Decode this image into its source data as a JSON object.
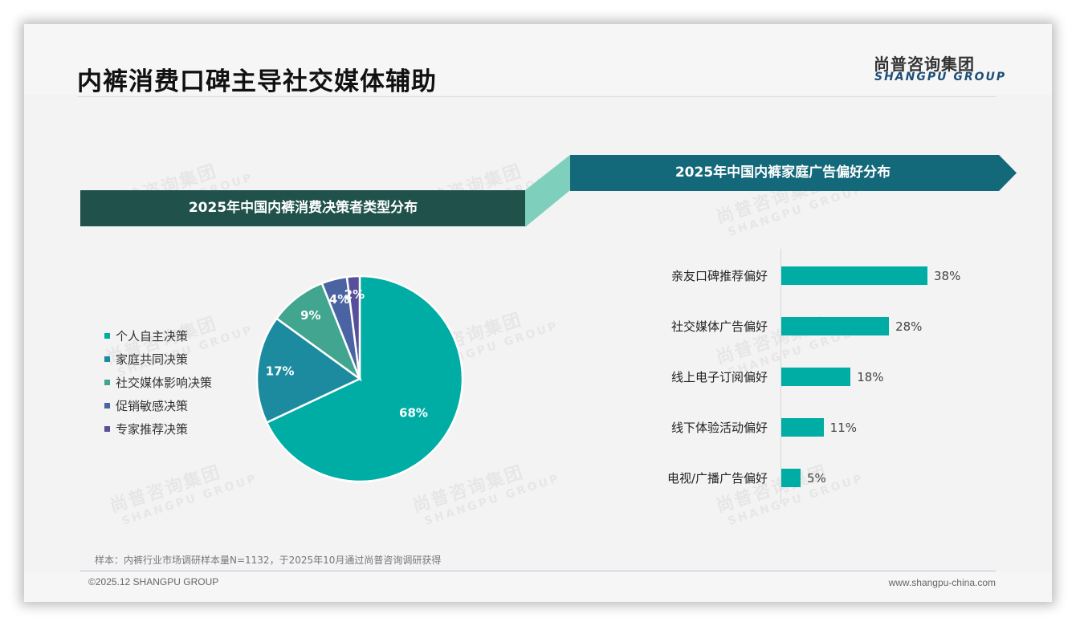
{
  "header": {
    "title": "内裤消费口碑主导社交媒体辅助",
    "logo_cn": "尚普咨询集团",
    "logo_en": "SHANGPU GROUP"
  },
  "watermark": {
    "cn": "尚普咨询集团",
    "en": "SHANGPU GROUP"
  },
  "colors": {
    "banner_left": "#20524b",
    "banner_right": "#13687a",
    "connector": "#7fcfbd",
    "bar": "#00ada5"
  },
  "chart_data": [
    {
      "type": "pie",
      "title": "2025年中国内裤消费决策者类型分布",
      "categories": [
        "个人自主决策",
        "家庭共同决策",
        "社交媒体影响决策",
        "促销敏感决策",
        "专家推荐决策"
      ],
      "values": [
        68,
        17,
        9,
        4,
        2
      ],
      "labels": [
        "68%",
        "17%",
        "9%",
        "4%",
        "2%"
      ],
      "colors": [
        "#00ada5",
        "#1c8ba0",
        "#42a58f",
        "#4a63a3",
        "#574f9a"
      ],
      "legend_position": "left",
      "start_angle": "top, clockwise"
    },
    {
      "type": "bar",
      "orientation": "horizontal",
      "title": "2025年中国内裤家庭广告偏好分布",
      "categories": [
        "亲友口碑推荐偏好",
        "社交媒体广告偏好",
        "线上电子订阅偏好",
        "线下体验活动偏好",
        "电视/广播广告偏好"
      ],
      "values": [
        38,
        28,
        18,
        11,
        5
      ],
      "labels": [
        "38%",
        "28%",
        "18%",
        "11%",
        "5%"
      ],
      "xlabel": "",
      "ylabel": "",
      "xlim": [
        0,
        40
      ],
      "grid": false,
      "color": "#00ada5"
    }
  ],
  "footer": {
    "note": "样本：内裤行业市场调研样本量N=1132，于2025年10月通过尚普咨询调研获得",
    "copyright": "©2025.12 SHANGPU GROUP",
    "website": "www.shangpu-china.com"
  }
}
